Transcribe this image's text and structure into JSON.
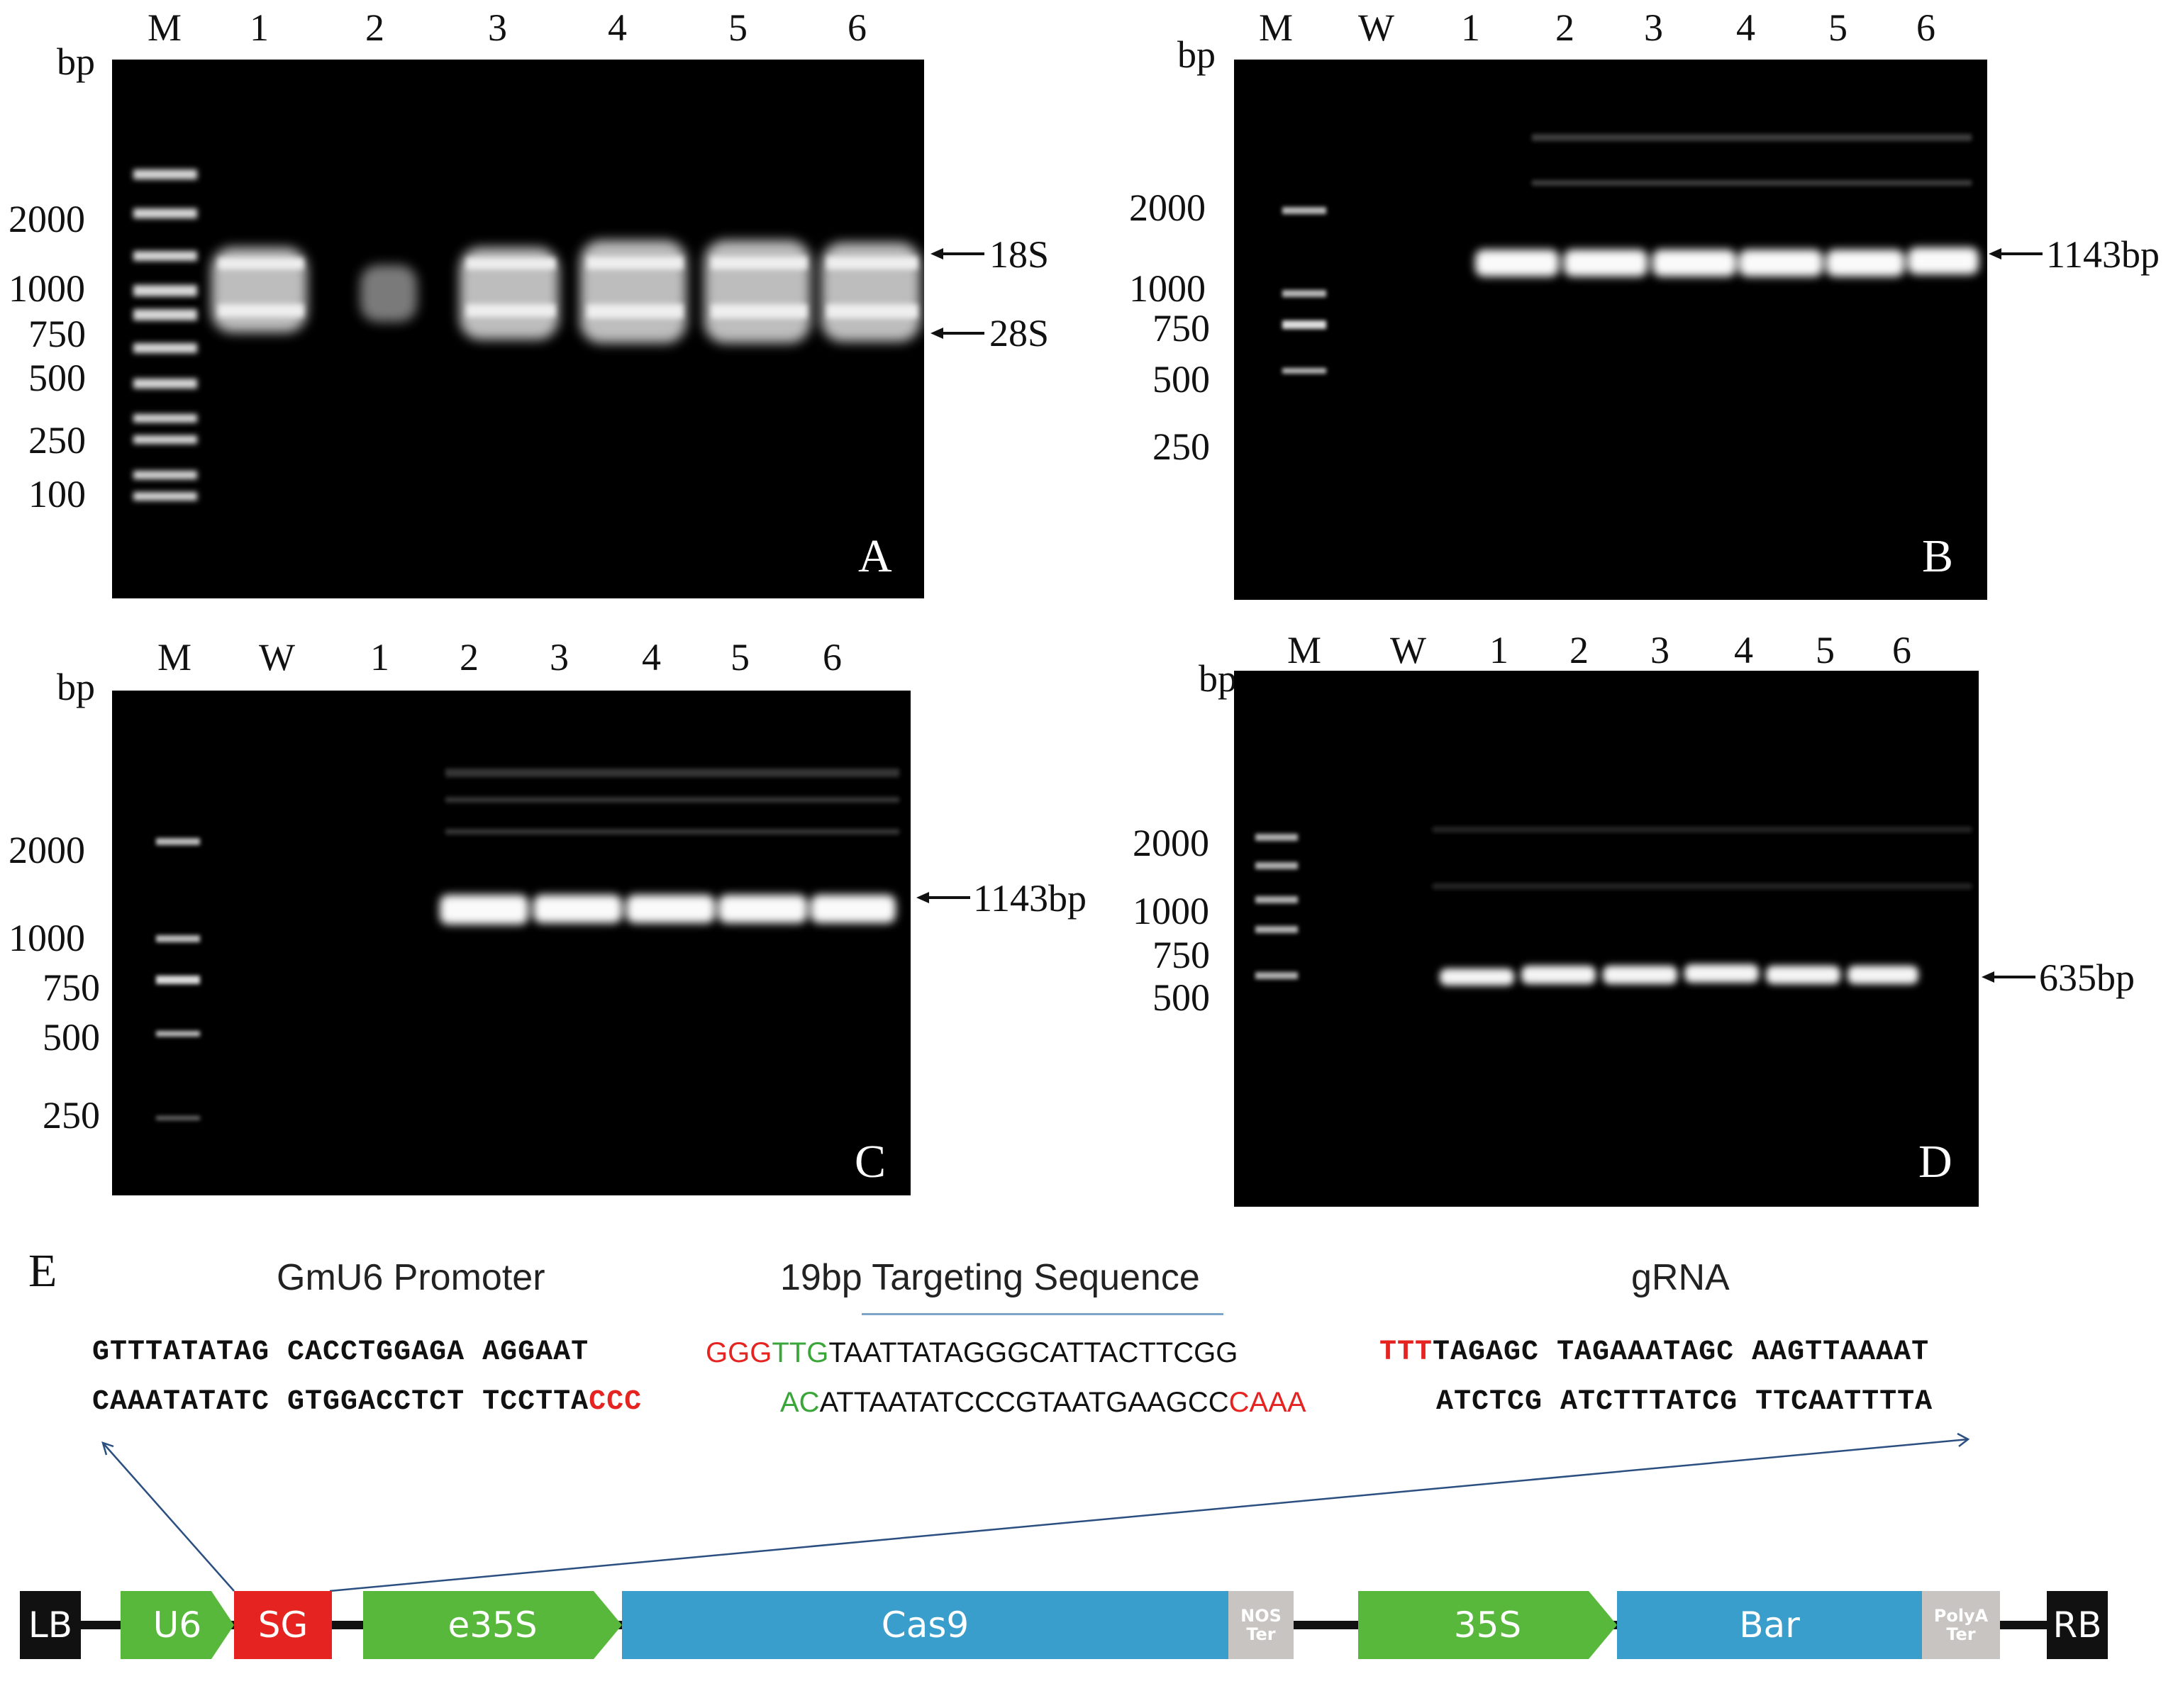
{
  "panels": {
    "A": {
      "letter": "A",
      "bp": "bp",
      "lanes": [
        "M",
        "1",
        "2",
        "3",
        "4",
        "5",
        "6"
      ],
      "ladder": [
        "2000",
        "1000",
        "750",
        "500",
        "250",
        "100"
      ],
      "markers": [
        "18S",
        "28S"
      ]
    },
    "B": {
      "letter": "B",
      "bp": "bp",
      "lanes": [
        "M",
        "W",
        "1",
        "2",
        "3",
        "4",
        "5",
        "6"
      ],
      "ladder": [
        "2000",
        "1000",
        "750",
        "500",
        "250"
      ],
      "marker": "1143bp"
    },
    "C": {
      "letter": "C",
      "bp": "bp",
      "lanes": [
        "M",
        "W",
        "1",
        "2",
        "3",
        "4",
        "5",
        "6"
      ],
      "ladder": [
        "2000",
        "1000",
        "750",
        "500",
        "250"
      ],
      "marker": "1143bp"
    },
    "D": {
      "letter": "D",
      "bp": "bp",
      "lanes": [
        "M",
        "W",
        "1",
        "2",
        "3",
        "4",
        "5",
        "6"
      ],
      "ladder": [
        "2000",
        "1000",
        "750",
        "500"
      ],
      "marker": "635bp"
    }
  },
  "construct": {
    "letter": "E",
    "promoter_title": "GmU6 Promoter",
    "target_title": "19bp Targeting Sequence",
    "grna_title": "gRNA",
    "seq_top_left": "GTTTATATAG CACCTGGAGA AGGAAT",
    "seq_bot_left": "CAAATATATC GTGGACCTCT TCCTTA",
    "seq_bot_left_red": "CCC",
    "target_top_red": "GGG",
    "target_top_green": "TTG",
    "target_top_rest": "TAATTATAGGGCATTACTTCGG",
    "target_bot_green": "AC",
    "target_bot_rest": "ATTAATATCCCGTAATGAAGCC",
    "target_bot_red": "CAAA",
    "grna_top_red": "TTT",
    "grna_top_rest": "TAGAGC TAGAAATAGC AAGTTAAAAT",
    "grna_bot": "ATCTCG ATCTTTATCG TTCAATTTTA",
    "elements": {
      "lb": "LB",
      "u6": "U6",
      "sg": "SG",
      "e35s": "e35S",
      "cas9": "Cas9",
      "nos": "NOS\nTer",
      "s35": "35S",
      "bar": "Bar",
      "polya": "PolyA\nTer",
      "rb": "RB"
    }
  },
  "colors": {
    "green": "#57b83b",
    "red": "#e52421",
    "blue": "#3a9ecd",
    "grey": "#c8c4c2",
    "black": "#111111",
    "seq_red": "#e52421",
    "seq_green": "#3aa639"
  }
}
